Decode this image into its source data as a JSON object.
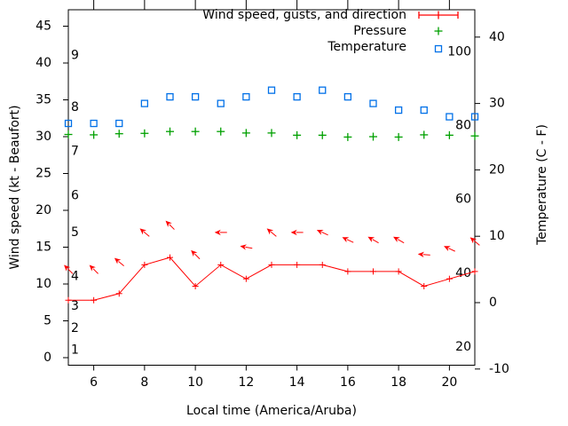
{
  "chart_data": {
    "type": "line",
    "title": "",
    "x": {
      "label": "Local time (America/Aruba)",
      "min": 5,
      "max": 21,
      "ticks": [
        6,
        8,
        10,
        12,
        14,
        16,
        18,
        20
      ],
      "hours": [
        5,
        6,
        7,
        8,
        9,
        10,
        11,
        12,
        13,
        14,
        15,
        16,
        17,
        18,
        19,
        20,
        21
      ]
    },
    "y_left": {
      "label": "Wind speed (kt - Beaufort)",
      "ticks": [
        0,
        5,
        10,
        15,
        20,
        25,
        30,
        35,
        40,
        45
      ],
      "inner_beaufort_labels": [
        {
          "text": "1",
          "kt": 1
        },
        {
          "text": "2",
          "kt": 4
        },
        {
          "text": "3",
          "kt": 7
        },
        {
          "text": "4",
          "kt": 11
        },
        {
          "text": "5",
          "kt": 17
        },
        {
          "text": "6",
          "kt": 22
        },
        {
          "text": "7",
          "kt": 28
        },
        {
          "text": "8",
          "kt": 34
        },
        {
          "text": "9",
          "kt": 41
        }
      ]
    },
    "y_right": {
      "label": "Temperature (C - F)",
      "ticks_celsius": [
        -10,
        0,
        10,
        20,
        30,
        40
      ],
      "inner_fahrenheit_labels": [
        "20",
        "40",
        "60",
        "80",
        "100"
      ]
    },
    "legend": [
      {
        "label": "Wind speed, gusts, and direction",
        "color": "#ff0000",
        "marker": "errorbar-line"
      },
      {
        "label": "Pressure",
        "color": "#00a000",
        "marker": "plus"
      },
      {
        "label": "Temperature",
        "color": "#0070e8",
        "marker": "open-square"
      }
    ],
    "series": [
      {
        "name": "Wind speed (kt)",
        "type": "line+plus-markers",
        "axis": "left",
        "color": "#ff0000",
        "values": [
          7.8,
          7.8,
          8.7,
          12.6,
          13.6,
          9.7,
          12.6,
          10.7,
          12.6,
          12.6,
          12.6,
          11.7,
          11.7,
          11.7,
          9.7,
          10.7,
          11.7
        ]
      },
      {
        "name": "Wind gusts with direction arrows (kt)",
        "type": "direction-arrows",
        "axis": "left",
        "color": "#ff0000",
        "values": [
          12,
          12,
          13,
          17,
          18,
          14,
          17,
          15,
          17,
          17,
          17,
          16,
          16,
          16,
          14,
          14.8,
          15.8
        ],
        "arrow_rotation_deg": [
          -135,
          -135,
          -140,
          -140,
          -135,
          -135,
          180,
          -170,
          -140,
          180,
          -155,
          -155,
          -150,
          -150,
          -175,
          -155,
          -140
        ]
      },
      {
        "name": "Pressure",
        "type": "plus-markers",
        "axis": "left",
        "units_note": "plotted against left-axis scale units",
        "color": "#00a000",
        "values": [
          30.3,
          30.25,
          30.4,
          30.45,
          30.7,
          30.7,
          30.7,
          30.5,
          30.5,
          30.2,
          30.2,
          29.95,
          30.0,
          29.95,
          30.25,
          30.2,
          30.1
        ]
      },
      {
        "name": "Temperature (C)",
        "type": "open-square-markers",
        "axis": "right",
        "color": "#0070e8",
        "values": [
          27,
          27,
          27,
          30,
          31,
          31,
          30,
          31,
          32,
          31,
          32,
          31,
          30,
          29,
          29,
          28,
          28
        ]
      }
    ]
  },
  "colors": {
    "background": "#ffffff",
    "foreground": "#000000",
    "wind": "#ff0000",
    "pressure": "#00a000",
    "temperature": "#0070e8"
  }
}
